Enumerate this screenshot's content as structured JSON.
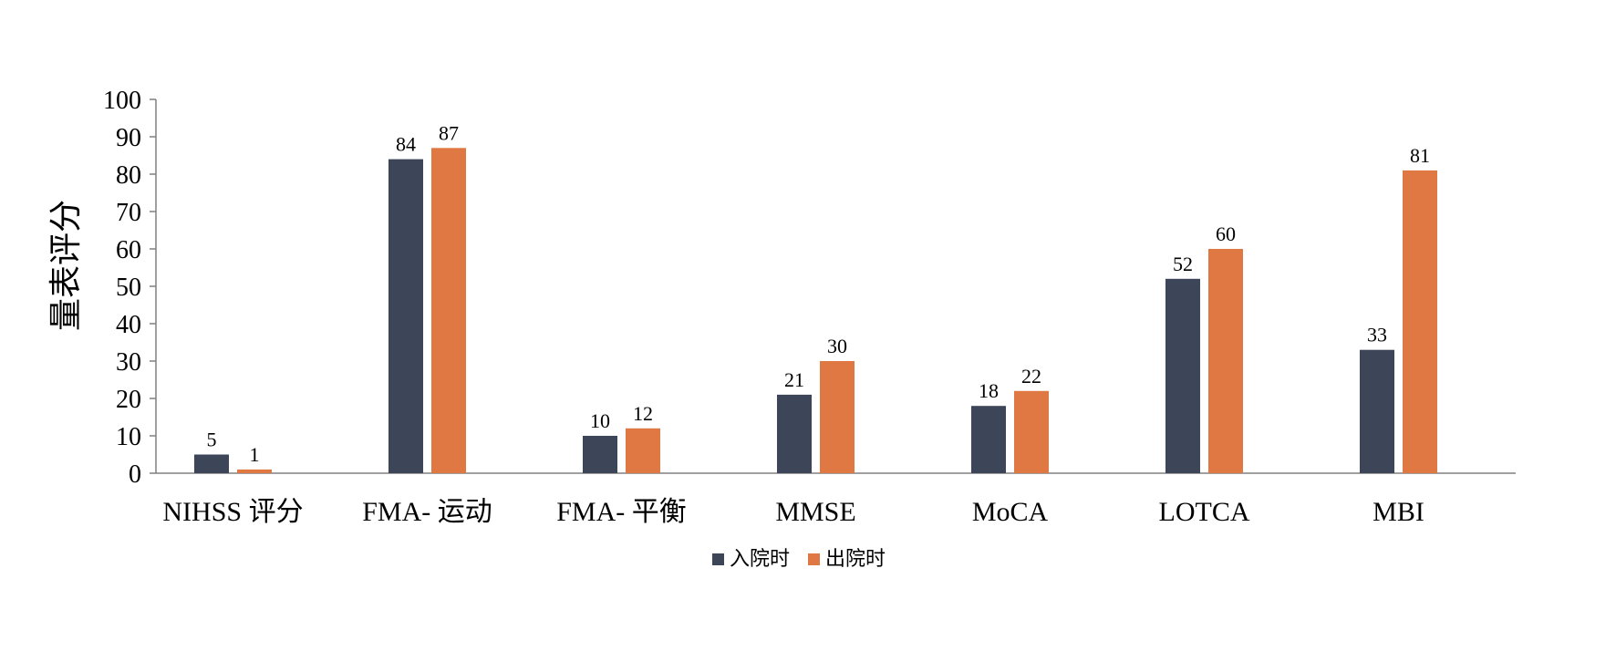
{
  "chart_data": {
    "type": "bar",
    "ylabel": "量表评分",
    "xlabel": "",
    "ylim": [
      0,
      100
    ],
    "yticks": [
      0,
      10,
      20,
      30,
      40,
      50,
      60,
      70,
      80,
      90,
      100
    ],
    "categories": [
      "NIHSS 评分",
      "FMA- 运动",
      "FMA- 平衡",
      "MMSE",
      "MoCA",
      "LOTCA",
      "MBI"
    ],
    "series": [
      {
        "name": "入院时",
        "color": "#3d4659",
        "values": [
          5,
          84,
          10,
          21,
          18,
          52,
          33
        ]
      },
      {
        "name": "出院时",
        "color": "#e07843",
        "values": [
          1,
          87,
          12,
          30,
          22,
          60,
          81
        ]
      }
    ],
    "grid": false,
    "legend": "bottom-center",
    "data_labels": true
  }
}
